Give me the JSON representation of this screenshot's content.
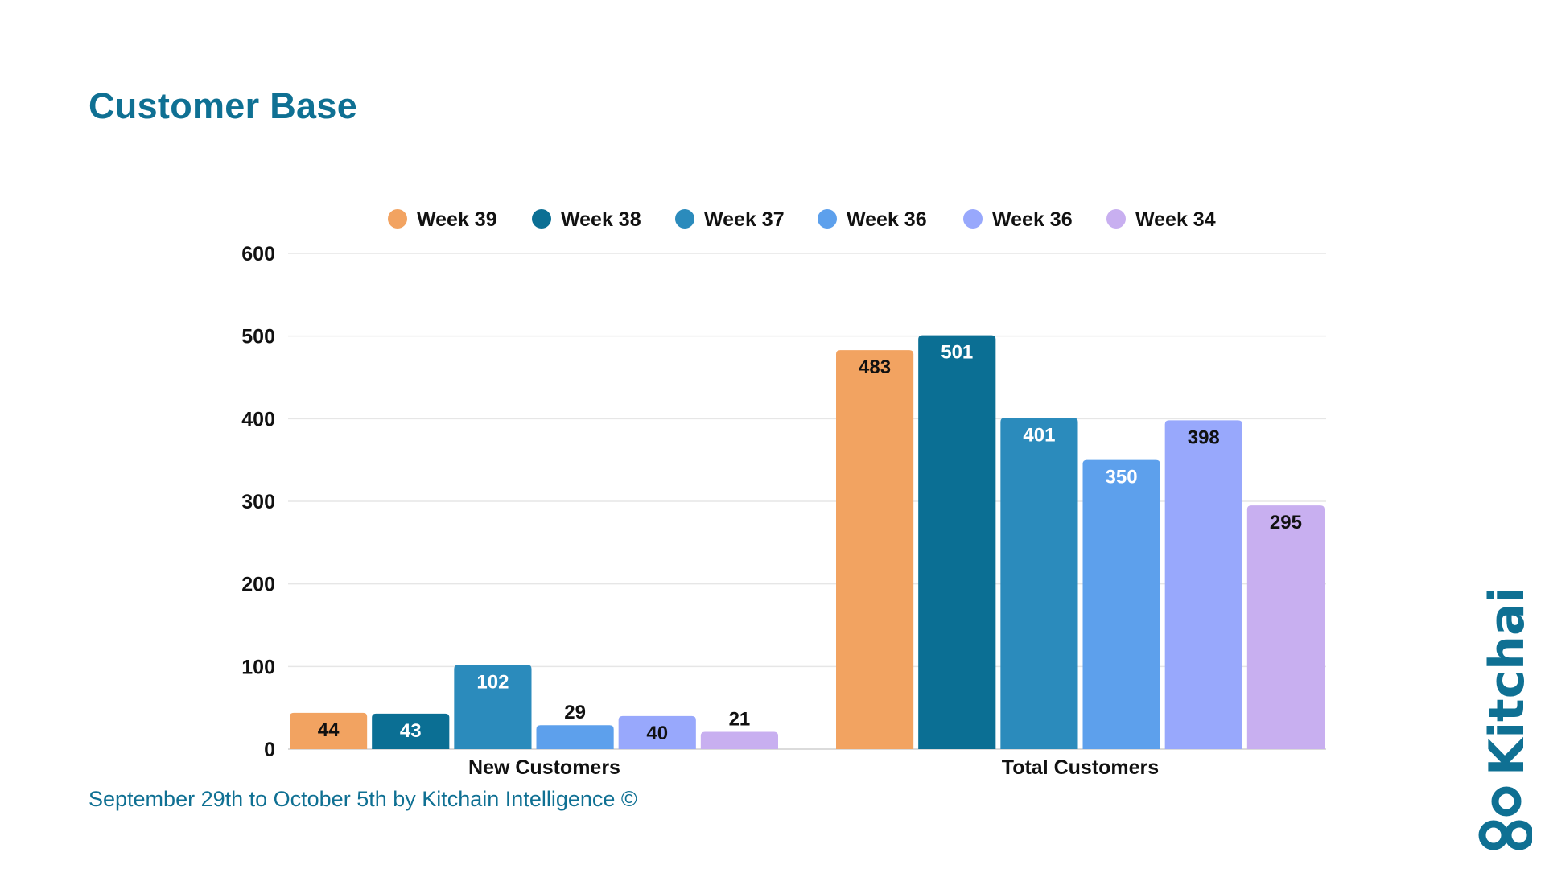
{
  "title": "Customer Base",
  "footnote": "September 29th to October 5th by Kitchain Intelligence ©",
  "brand": {
    "name": "Kitchain",
    "color": "#0f7093"
  },
  "chart_data": {
    "type": "bar",
    "title": "Customer Base",
    "xlabel": "",
    "ylabel": "",
    "ylim": [
      0,
      600
    ],
    "yticks": [
      0,
      100,
      200,
      300,
      400,
      500,
      600
    ],
    "grid": true,
    "legend_position": "top",
    "categories": [
      "New Customers",
      "Total Customers"
    ],
    "series": [
      {
        "name": "Week 39",
        "color": "#f2a361",
        "label_color": "#111111",
        "values": [
          44,
          483
        ]
      },
      {
        "name": "Week 38",
        "color": "#0b6f94",
        "label_color": "#ffffff",
        "values": [
          43,
          501
        ]
      },
      {
        "name": "Week 37",
        "color": "#2b8bbc",
        "label_color": "#ffffff",
        "values": [
          102,
          401
        ]
      },
      {
        "name": "Week 36",
        "color": "#5da0ec",
        "label_color": "#ffffff",
        "values": [
          29,
          350
        ]
      },
      {
        "name": "Week 36",
        "color": "#98a8fc",
        "label_color": "#111111",
        "values": [
          40,
          398
        ]
      },
      {
        "name": "Week 34",
        "color": "#c8aff0",
        "label_color": "#111111",
        "values": [
          21,
          295
        ]
      }
    ]
  }
}
